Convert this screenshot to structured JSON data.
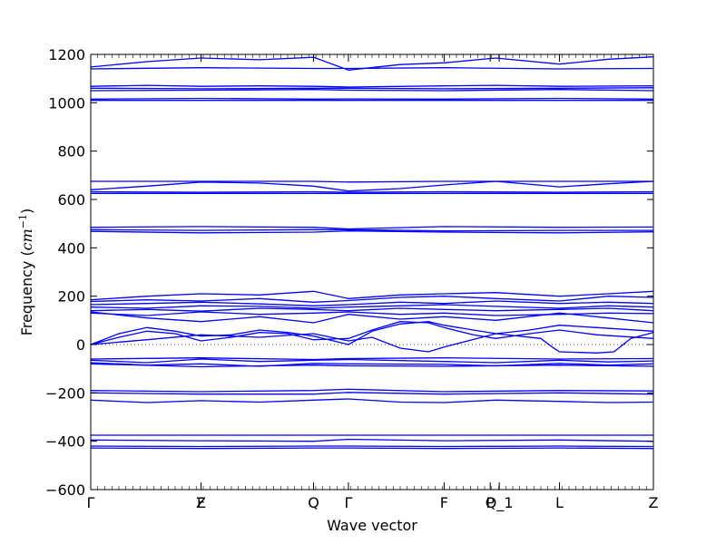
{
  "chart_data": {
    "type": "line",
    "title": "",
    "xlabel": "Wave vector",
    "ylabel": "Frequency ($cm^{-1}$)",
    "ylabel_main": "Frequency (",
    "ylabel_unit": "cm",
    "ylabel_exp": "−1",
    "ylabel_close": ")",
    "ylim": [
      -600,
      1200
    ],
    "yticks": [
      -600,
      -400,
      -200,
      0,
      200,
      400,
      600,
      800,
      1000,
      1200
    ],
    "xlim": [
      0,
      1
    ],
    "grid": false,
    "legend": "none",
    "line_color": "#0000ff",
    "zero_line_color": "#000000",
    "high_symmetry_points": [
      {
        "label": "Γ",
        "x": 0.0
      },
      {
        "label": "F",
        "x": 0.196
      },
      {
        "label": "Z",
        "x": 0.196
      },
      {
        "label": "Q",
        "x": 0.396
      },
      {
        "label": "Γ",
        "x": 0.458
      },
      {
        "label": "F",
        "x": 0.628
      },
      {
        "label": "P",
        "x": 0.71
      },
      {
        "label": "Q_1",
        "x": 0.726
      },
      {
        "label": "L",
        "x": 0.833
      },
      {
        "label": "Z",
        "x": 1.0
      }
    ],
    "series": [
      {
        "x": [
          0,
          0.1,
          0.196,
          0.3,
          0.396,
          0.458,
          0.55,
          0.628,
          0.72,
          0.833,
          0.92,
          1.0
        ],
        "values": [
          1148,
          1170,
          1185,
          1178,
          1188,
          1135,
          1158,
          1165,
          1185,
          1160,
          1180,
          1190
        ]
      },
      {
        "x": [
          0,
          0.196,
          0.396,
          0.458,
          0.628,
          0.833,
          1.0
        ],
        "values": [
          1140,
          1145,
          1142,
          1142,
          1145,
          1140,
          1142
        ]
      },
      {
        "x": [
          0,
          0.1,
          0.196,
          0.3,
          0.396,
          0.458,
          0.628,
          0.72,
          0.833,
          1.0
        ],
        "values": [
          1068,
          1072,
          1068,
          1070,
          1068,
          1065,
          1070,
          1072,
          1068,
          1070
        ]
      },
      {
        "x": [
          0,
          0.196,
          0.396,
          0.458,
          0.628,
          0.833,
          1.0
        ],
        "values": [
          1060,
          1058,
          1060,
          1060,
          1058,
          1060,
          1062
        ]
      },
      {
        "x": [
          0,
          0.196,
          0.396,
          0.458,
          0.628,
          0.833,
          1.0
        ],
        "values": [
          1050,
          1052,
          1055,
          1052,
          1050,
          1055,
          1050
        ]
      },
      {
        "x": [
          0,
          0.196,
          0.396,
          0.458,
          0.628,
          0.833,
          1.0
        ],
        "values": [
          1015,
          1018,
          1015,
          1016,
          1015,
          1018,
          1015
        ]
      },
      {
        "x": [
          0,
          0.196,
          0.396,
          0.458,
          0.628,
          0.833,
          1.0
        ],
        "values": [
          1010,
          1010,
          1010,
          1010,
          1010,
          1010,
          1010
        ]
      },
      {
        "x": [
          0,
          0.196,
          0.396,
          0.458,
          0.628,
          0.833,
          1.0
        ],
        "values": [
          675,
          675,
          675,
          672,
          675,
          675,
          675
        ]
      },
      {
        "x": [
          0,
          0.1,
          0.196,
          0.3,
          0.396,
          0.458,
          0.55,
          0.628,
          0.72,
          0.833,
          0.92,
          1.0
        ],
        "values": [
          640,
          655,
          672,
          668,
          655,
          635,
          645,
          660,
          675,
          652,
          665,
          675
        ]
      },
      {
        "x": [
          0,
          0.196,
          0.396,
          0.458,
          0.628,
          0.833,
          1.0
        ],
        "values": [
          632,
          630,
          632,
          630,
          632,
          630,
          632
        ]
      },
      {
        "x": [
          0,
          0.196,
          0.396,
          0.458,
          0.628,
          0.833,
          1.0
        ],
        "values": [
          625,
          625,
          625,
          625,
          625,
          625,
          625
        ]
      },
      {
        "x": [
          0,
          0.196,
          0.396,
          0.458,
          0.628,
          0.833,
          1.0
        ],
        "values": [
          485,
          488,
          485,
          478,
          488,
          485,
          486
        ]
      },
      {
        "x": [
          0,
          0.196,
          0.396,
          0.458,
          0.628,
          0.833,
          1.0
        ],
        "values": [
          475,
          472,
          475,
          475,
          470,
          472,
          472
        ]
      },
      {
        "x": [
          0,
          0.196,
          0.396,
          0.458,
          0.628,
          0.833,
          1.0
        ],
        "values": [
          468,
          462,
          465,
          470,
          465,
          462,
          466
        ]
      },
      {
        "x": [
          0,
          0.1,
          0.196,
          0.3,
          0.396,
          0.458,
          0.55,
          0.628,
          0.72,
          0.833,
          0.92,
          1.0
        ],
        "values": [
          185,
          200,
          210,
          205,
          220,
          190,
          205,
          210,
          215,
          200,
          210,
          220
        ]
      },
      {
        "x": [
          0,
          0.1,
          0.196,
          0.3,
          0.396,
          0.458,
          0.55,
          0.628,
          0.72,
          0.833,
          0.92,
          1.0
        ],
        "values": [
          178,
          185,
          180,
          190,
          175,
          182,
          195,
          200,
          190,
          180,
          200,
          195
        ]
      },
      {
        "x": [
          0,
          0.1,
          0.196,
          0.3,
          0.396,
          0.458,
          0.55,
          0.628,
          0.72,
          0.833,
          0.92,
          1.0
        ],
        "values": [
          165,
          170,
          175,
          168,
          160,
          165,
          175,
          170,
          180,
          170,
          175,
          170
        ]
      },
      {
        "x": [
          0,
          0.1,
          0.196,
          0.3,
          0.396,
          0.458,
          0.55,
          0.628,
          0.72,
          0.833,
          0.92,
          1.0
        ],
        "values": [
          155,
          150,
          160,
          158,
          150,
          155,
          160,
          165,
          158,
          150,
          160,
          155
        ]
      },
      {
        "x": [
          0,
          0.1,
          0.196,
          0.3,
          0.396,
          0.458,
          0.55,
          0.628,
          0.72,
          0.833,
          0.92,
          1.0
        ],
        "values": [
          140,
          145,
          138,
          150,
          145,
          140,
          150,
          145,
          140,
          145,
          150,
          140
        ]
      },
      {
        "x": [
          0,
          0.1,
          0.196,
          0.3,
          0.396,
          0.458,
          0.55,
          0.628,
          0.72,
          0.833,
          0.92,
          1.0
        ],
        "values": [
          130,
          120,
          135,
          125,
          130,
          135,
          125,
          130,
          120,
          125,
          130,
          128
        ]
      },
      {
        "x": [
          0,
          0.1,
          0.196,
          0.3,
          0.396,
          0.458,
          0.55,
          0.628,
          0.72,
          0.833,
          0.92,
          1.0
        ],
        "values": [
          135,
          110,
          95,
          115,
          90,
          125,
          105,
          115,
          100,
          130,
          110,
          90
        ]
      },
      {
        "x": [
          0,
          0.05,
          0.1,
          0.15,
          0.196,
          0.25,
          0.3,
          0.35,
          0.396,
          0.458,
          0.5,
          0.55,
          0.6,
          0.628,
          0.68,
          0.72,
          0.78,
          0.833,
          0.9,
          1.0
        ],
        "values": [
          0,
          45,
          70,
          55,
          35,
          40,
          60,
          50,
          35,
          0,
          55,
          85,
          95,
          80,
          60,
          45,
          60,
          80,
          70,
          55
        ]
      },
      {
        "x": [
          0,
          0.05,
          0.1,
          0.15,
          0.196,
          0.25,
          0.3,
          0.35,
          0.396,
          0.458,
          0.5,
          0.55,
          0.6,
          0.628,
          0.68,
          0.72,
          0.78,
          0.833,
          0.9,
          1.0
        ],
        "values": [
          0,
          30,
          55,
          45,
          15,
          30,
          50,
          45,
          20,
          25,
          60,
          95,
          90,
          70,
          40,
          25,
          45,
          60,
          40,
          25
        ]
      },
      {
        "x": [
          0,
          0.1,
          0.196,
          0.3,
          0.396,
          0.458,
          0.5,
          0.55,
          0.6,
          0.628,
          0.72,
          0.8,
          0.82,
          0.833,
          0.9,
          0.93,
          0.96,
          1.0
        ],
        "values": [
          0,
          20,
          40,
          30,
          45,
          15,
          30,
          -15,
          -30,
          -10,
          45,
          25,
          -10,
          -30,
          -35,
          -30,
          25,
          50
        ]
      },
      {
        "x": [
          0,
          0.196,
          0.396,
          0.458,
          0.628,
          0.833,
          1.0
        ],
        "values": [
          -60,
          -55,
          -62,
          -58,
          -55,
          -60,
          -58
        ]
      },
      {
        "x": [
          0,
          0.1,
          0.196,
          0.3,
          0.396,
          0.458,
          0.628,
          0.72,
          0.833,
          0.92,
          1.0
        ],
        "values": [
          -65,
          -75,
          -60,
          -70,
          -65,
          -62,
          -70,
          -75,
          -65,
          -72,
          -68
        ]
      },
      {
        "x": [
          0,
          0.1,
          0.196,
          0.3,
          0.396,
          0.458,
          0.628,
          0.72,
          0.833,
          0.92,
          1.0
        ],
        "values": [
          -75,
          -85,
          -80,
          -90,
          -78,
          -80,
          -82,
          -88,
          -78,
          -85,
          -80
        ]
      },
      {
        "x": [
          0,
          0.196,
          0.396,
          0.458,
          0.628,
          0.833,
          1.0
        ],
        "values": [
          -80,
          -92,
          -85,
          -88,
          -90,
          -85,
          -90
        ]
      },
      {
        "x": [
          0,
          0.196,
          0.396,
          0.458,
          0.628,
          0.833,
          1.0
        ],
        "values": [
          -190,
          -195,
          -190,
          -185,
          -195,
          -190,
          -192
        ]
      },
      {
        "x": [
          0,
          0.196,
          0.396,
          0.458,
          0.628,
          0.833,
          1.0
        ],
        "values": [
          -200,
          -205,
          -205,
          -198,
          -205,
          -200,
          -205
        ]
      },
      {
        "x": [
          0,
          0.1,
          0.196,
          0.3,
          0.396,
          0.458,
          0.55,
          0.628,
          0.72,
          0.833,
          0.92,
          1.0
        ],
        "values": [
          -230,
          -240,
          -232,
          -238,
          -230,
          -225,
          -238,
          -240,
          -230,
          -235,
          -240,
          -238
        ]
      },
      {
        "x": [
          0,
          0.196,
          0.396,
          0.458,
          0.628,
          0.833,
          1.0
        ],
        "values": [
          -375,
          -375,
          -375,
          -375,
          -375,
          -375,
          -375
        ]
      },
      {
        "x": [
          0,
          0.196,
          0.396,
          0.458,
          0.628,
          0.833,
          1.0
        ],
        "values": [
          -395,
          -398,
          -400,
          -392,
          -398,
          -395,
          -400
        ]
      },
      {
        "x": [
          0,
          0.196,
          0.396,
          0.458,
          0.628,
          0.833,
          1.0
        ],
        "values": [
          -420,
          -422,
          -420,
          -420,
          -422,
          -420,
          -422
        ]
      },
      {
        "x": [
          0,
          0.196,
          0.396,
          0.458,
          0.628,
          0.833,
          1.0
        ],
        "values": [
          -428,
          -430,
          -428,
          -428,
          -430,
          -428,
          -430
        ]
      }
    ]
  }
}
